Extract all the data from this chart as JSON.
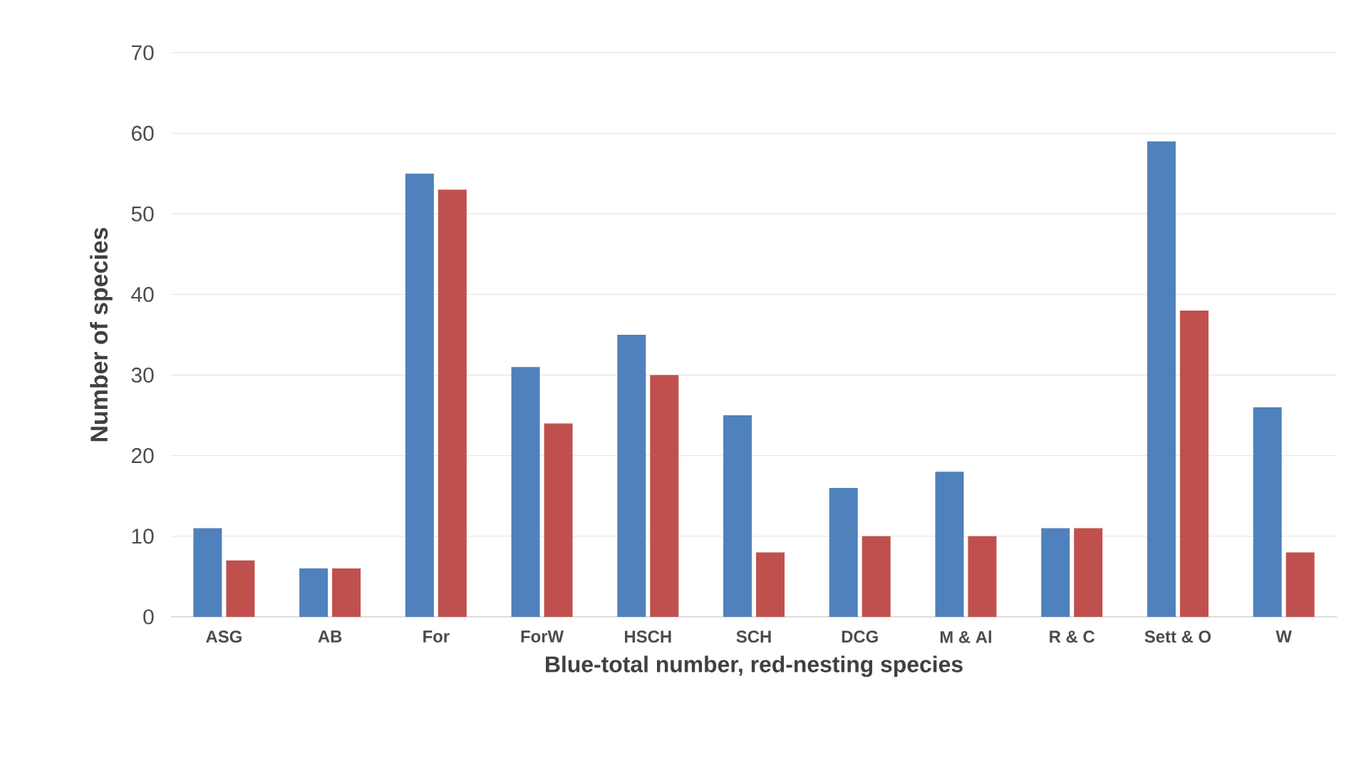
{
  "chart_data": {
    "type": "bar",
    "xlabel": "Blue-total number, red-nesting species",
    "ylabel": "Number of species",
    "categories": [
      "ASG",
      "AB",
      "For",
      "ForW",
      "HSCH",
      "SCH",
      "DCG",
      "M & Al",
      "R & C",
      "Sett & O",
      "W"
    ],
    "series": [
      {
        "color": "#4f81bd",
        "values": [
          11,
          6,
          55,
          31,
          35,
          25,
          16,
          18,
          11,
          59,
          26
        ]
      },
      {
        "color": "#c0504d",
        "values": [
          7,
          6,
          53,
          24,
          30,
          8,
          10,
          10,
          11,
          38,
          8
        ]
      }
    ],
    "ylim": [
      0,
      70
    ],
    "yticks": [
      0,
      10,
      20,
      30,
      40,
      50,
      60,
      70
    ],
    "grid": "y"
  }
}
